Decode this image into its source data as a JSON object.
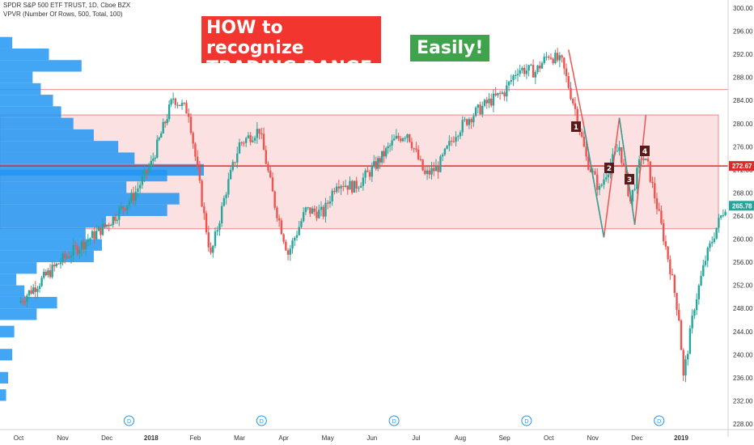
{
  "header": {
    "symbol_line": "SPDR S&P 500 ETF TRUST, 1D, Cboe BZX",
    "indicator_line": "VPVR (Number Of Rows, 500, Total, 100)"
  },
  "annotations": {
    "banner_line1": "HOW to recognize",
    "banner_line2": "TRADING RANGE",
    "banner_easily": "Easily!",
    "points": [
      "1",
      "2",
      "3",
      "4"
    ],
    "dividend_marker": "D"
  },
  "colors": {
    "up": "#26a69a",
    "down": "#ef5350",
    "range_fill": "#fbe1e1",
    "range_border": "#f08a8a",
    "level_line": "#e02a2a",
    "volume": "#2196f3",
    "current_price": "#26a69a",
    "banner_red": "#f2352f",
    "banner_green": "#3ea34a"
  },
  "chart_data": {
    "type": "candlestick",
    "title": "",
    "xlabel": "",
    "ylabel": "",
    "ylim": [
      227,
      301
    ],
    "y_ticks": [
      "228.00",
      "232.00",
      "236.00",
      "240.00",
      "244.00",
      "248.00",
      "252.00",
      "256.00",
      "260.00",
      "264.00",
      "268.00",
      "272.00",
      "276.00",
      "280.00",
      "284.00",
      "288.00",
      "292.00",
      "296.00",
      "300.00"
    ],
    "x_ticks": [
      "Oct",
      "Nov",
      "Dec",
      "2018",
      "Feb",
      "Mar",
      "Apr",
      "May",
      "Jun",
      "Jul",
      "Aug",
      "Sep",
      "Oct",
      "Nov",
      "Dec",
      "2019"
    ],
    "trading_range": {
      "upper": 281.5,
      "lower": 261.8
    },
    "top_line": 285.9,
    "key_level": {
      "label": "272.67",
      "value": 272.67
    },
    "current_price": {
      "label": "265.78",
      "value": 265.78
    },
    "dividend_markers": [
      "Dec",
      "Mar",
      "Jun",
      "Sep",
      "Dec"
    ],
    "zigzag": [
      {
        "month": 12.45,
        "price": 292.8
      },
      {
        "month": 12.8,
        "price": 279.5
      },
      {
        "month": 13.25,
        "price": 260.3
      },
      {
        "month": 13.6,
        "price": 281.0
      },
      {
        "month": 13.95,
        "price": 262.5
      },
      {
        "month": 14.2,
        "price": 281.5
      }
    ],
    "closes": [
      {
        "month": 0.0,
        "price": 249.0
      },
      {
        "month": 1.0,
        "price": 256.5
      },
      {
        "month": 2.0,
        "price": 262.5
      },
      {
        "month": 2.6,
        "price": 267.5
      },
      {
        "month": 3.0,
        "price": 273.0
      },
      {
        "month": 3.5,
        "price": 284.5
      },
      {
        "month": 3.85,
        "price": 282.0
      },
      {
        "month": 4.2,
        "price": 264.0
      },
      {
        "month": 4.35,
        "price": 257.0
      },
      {
        "month": 4.7,
        "price": 268.5
      },
      {
        "month": 5.0,
        "price": 276.5
      },
      {
        "month": 5.45,
        "price": 279.0
      },
      {
        "month": 5.8,
        "price": 266.0
      },
      {
        "month": 6.1,
        "price": 257.5
      },
      {
        "month": 6.5,
        "price": 265.0
      },
      {
        "month": 6.9,
        "price": 264.5
      },
      {
        "month": 7.2,
        "price": 270.0
      },
      {
        "month": 7.6,
        "price": 269.0
      },
      {
        "month": 8.0,
        "price": 272.0
      },
      {
        "month": 8.5,
        "price": 277.0
      },
      {
        "month": 8.8,
        "price": 278.5
      },
      {
        "month": 9.2,
        "price": 271.0
      },
      {
        "month": 9.5,
        "price": 272.5
      },
      {
        "month": 9.9,
        "price": 278.5
      },
      {
        "month": 10.2,
        "price": 281.0
      },
      {
        "month": 10.6,
        "price": 283.5
      },
      {
        "month": 11.0,
        "price": 285.5
      },
      {
        "month": 11.3,
        "price": 289.5
      },
      {
        "month": 11.7,
        "price": 289.0
      },
      {
        "month": 12.0,
        "price": 292.0
      },
      {
        "month": 12.3,
        "price": 290.5
      },
      {
        "month": 12.6,
        "price": 282.5
      },
      {
        "month": 12.85,
        "price": 274.0
      },
      {
        "month": 13.15,
        "price": 268.5
      },
      {
        "month": 13.3,
        "price": 271.5
      },
      {
        "month": 13.6,
        "price": 276.0
      },
      {
        "month": 13.85,
        "price": 266.5
      },
      {
        "month": 14.1,
        "price": 274.5
      },
      {
        "month": 14.25,
        "price": 272.5
      },
      {
        "month": 14.5,
        "price": 264.0
      },
      {
        "month": 14.75,
        "price": 255.0
      },
      {
        "month": 14.95,
        "price": 246.5
      },
      {
        "month": 15.05,
        "price": 236.0
      },
      {
        "month": 15.3,
        "price": 248.5
      },
      {
        "month": 15.55,
        "price": 256.5
      },
      {
        "month": 15.8,
        "price": 262.0
      },
      {
        "month": 16.0,
        "price": 265.8
      }
    ],
    "volume_profile": [
      {
        "price": 233,
        "volume": 0.03
      },
      {
        "price": 236,
        "volume": 0.04
      },
      {
        "price": 240,
        "volume": 0.06
      },
      {
        "price": 244,
        "volume": 0.07
      },
      {
        "price": 247,
        "volume": 0.18
      },
      {
        "price": 249,
        "volume": 0.28
      },
      {
        "price": 251,
        "volume": 0.12
      },
      {
        "price": 253,
        "volume": 0.08
      },
      {
        "price": 255,
        "volume": 0.18
      },
      {
        "price": 257,
        "volume": 0.46
      },
      {
        "price": 259,
        "volume": 0.5
      },
      {
        "price": 261,
        "volume": 0.42
      },
      {
        "price": 263,
        "volume": 0.52
      },
      {
        "price": 265,
        "volume": 0.82
      },
      {
        "price": 267,
        "volume": 0.88
      },
      {
        "price": 269,
        "volume": 0.62
      },
      {
        "price": 271,
        "volume": 0.82
      },
      {
        "price": 272,
        "volume": 1.0
      },
      {
        "price": 274,
        "volume": 0.66
      },
      {
        "price": 276,
        "volume": 0.58
      },
      {
        "price": 278,
        "volume": 0.46
      },
      {
        "price": 280,
        "volume": 0.36
      },
      {
        "price": 282,
        "volume": 0.3
      },
      {
        "price": 284,
        "volume": 0.26
      },
      {
        "price": 286,
        "volume": 0.2
      },
      {
        "price": 288,
        "volume": 0.16
      },
      {
        "price": 290,
        "volume": 0.4
      },
      {
        "price": 292,
        "volume": 0.24
      },
      {
        "price": 294,
        "volume": 0.06
      }
    ]
  }
}
